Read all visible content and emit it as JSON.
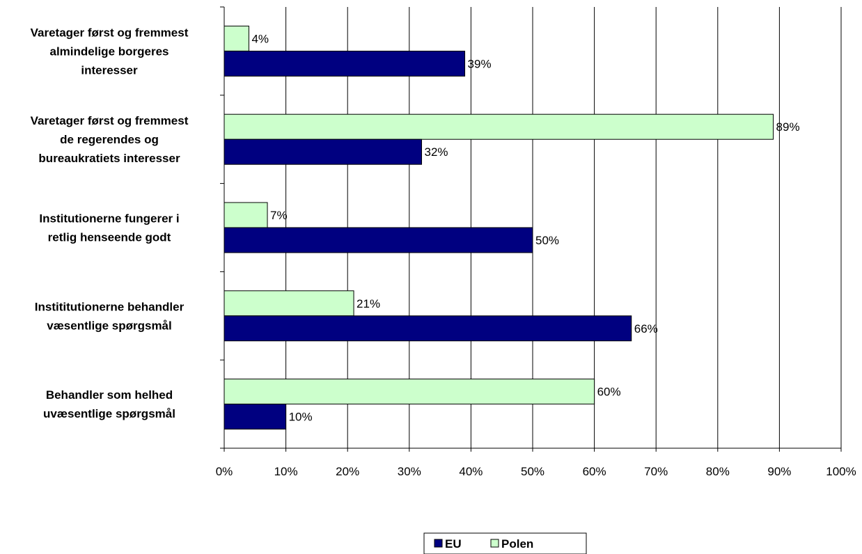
{
  "chart_data": {
    "type": "bar",
    "orientation": "horizontal",
    "categories": [
      [
        "Varetager først og fremmest",
        "almindelige borgeres",
        "interesser"
      ],
      [
        "Varetager først og fremmest",
        "de regerendes og",
        "bureaukratiets interesser"
      ],
      [
        "Institutionerne fungerer i",
        "retlig henseende godt"
      ],
      [
        "Instititutionerne behandler",
        "væsentlige spørgsmål"
      ],
      [
        "Behandler som helhed",
        "uvæsentlige spørgsmål"
      ]
    ],
    "series": [
      {
        "name": "Polen",
        "color": "#ccffcc",
        "values": [
          4,
          89,
          7,
          21,
          60
        ],
        "labels": [
          "4%",
          "89%",
          "7%",
          "21%",
          "60%"
        ]
      },
      {
        "name": "EU",
        "color": "#000080",
        "values": [
          39,
          32,
          50,
          66,
          10
        ],
        "labels": [
          "39%",
          "32%",
          "50%",
          "66%",
          "10%"
        ]
      }
    ],
    "xlim": [
      0,
      100
    ],
    "x_ticks": [
      "0%",
      "10%",
      "20%",
      "30%",
      "40%",
      "50%",
      "60%",
      "70%",
      "80%",
      "90%",
      "100%"
    ],
    "grid": true,
    "legend": {
      "placement": "bottom-center",
      "order": [
        "EU",
        "Polen"
      ]
    }
  }
}
